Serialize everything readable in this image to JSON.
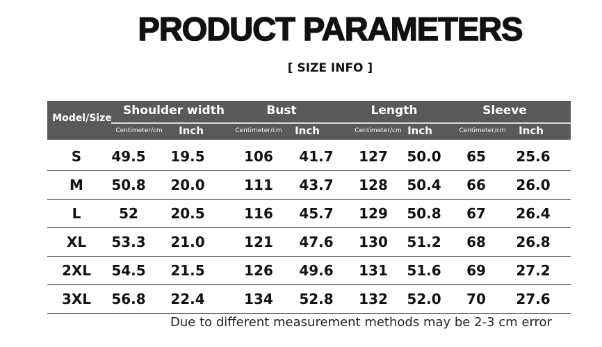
{
  "title": "PRODUCT PARAMETERS",
  "subtitle": "[ SIZE  INFO ]",
  "table": {
    "size_header": "Model/Size",
    "groups": [
      "Shoulder width",
      "Bust",
      "Length",
      "Sleeve"
    ],
    "unit_cm": "Centimeter/cm",
    "unit_inch": "Inch",
    "rows": [
      [
        "S",
        "49.5",
        "19.5",
        "106",
        "41.7",
        "127",
        "50.0",
        "65",
        "25.6"
      ],
      [
        "M",
        "50.8",
        "20.0",
        "111",
        "43.7",
        "128",
        "50.4",
        "66",
        "26.0"
      ],
      [
        "L",
        "52",
        "20.5",
        "116",
        "45.7",
        "129",
        "50.8",
        "67",
        "26.4"
      ],
      [
        "XL",
        "53.3",
        "21.0",
        "121",
        "47.6",
        "130",
        "51.2",
        "68",
        "26.8"
      ],
      [
        "2XL",
        "54.5",
        "21.5",
        "126",
        "49.6",
        "131",
        "51.6",
        "69",
        "27.2"
      ],
      [
        "3XL",
        "56.8",
        "22.4",
        "134",
        "52.8",
        "132",
        "52.0",
        "70",
        "27.6"
      ]
    ]
  },
  "note": "Due to different measurement methods may be 2-3 cm error"
}
